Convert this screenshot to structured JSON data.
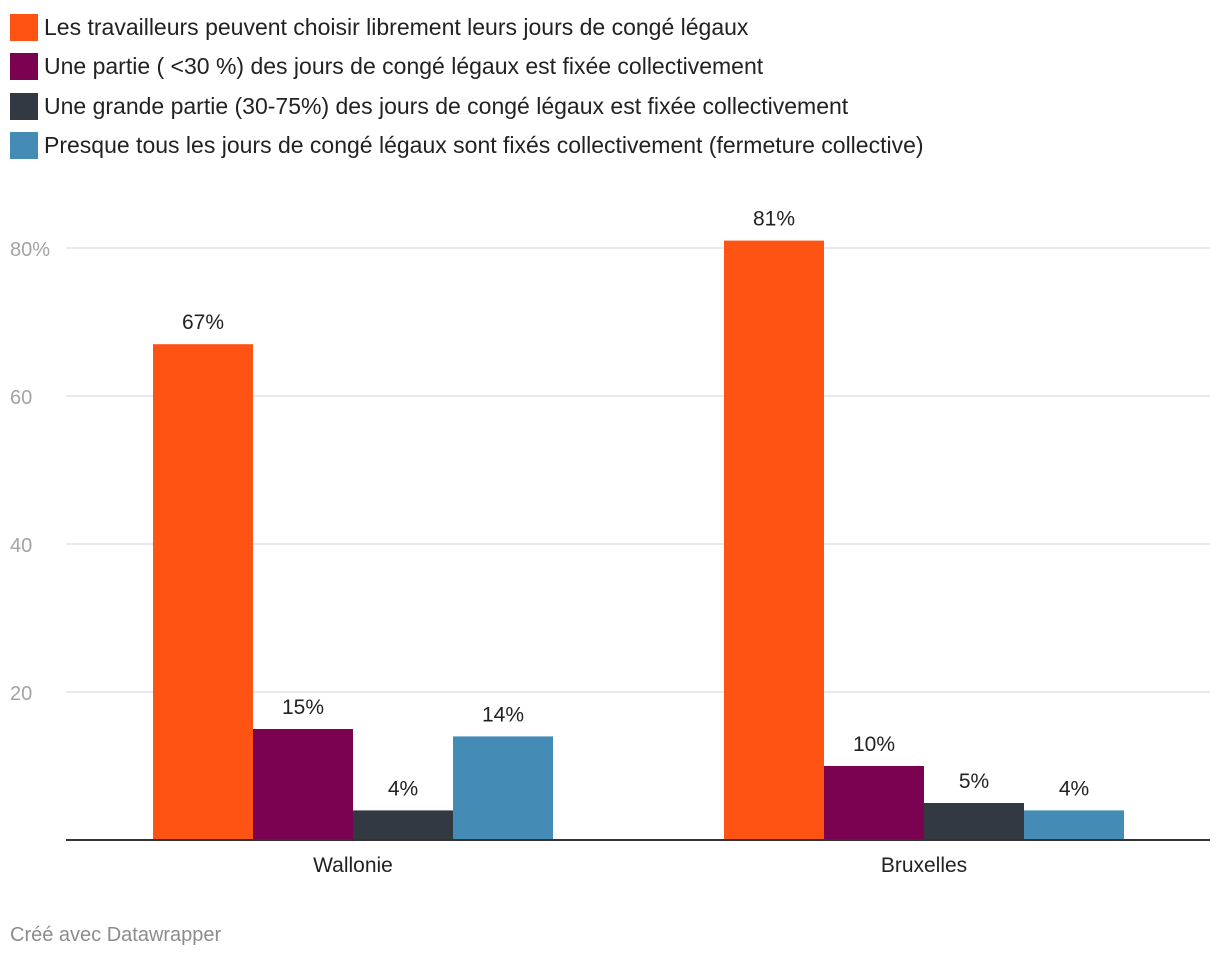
{
  "chart_data": {
    "type": "bar",
    "categories": [
      "Wallonie",
      "Bruxelles"
    ],
    "series": [
      {
        "name": "Les travailleurs peuvent choisir librement leurs jours de congé légaux",
        "color": "#ff5313",
        "values": [
          67,
          81
        ],
        "labels": [
          "67%",
          "81%"
        ]
      },
      {
        "name": "Une partie ( <30 %) des jours de congé légaux est fixée collectivement",
        "color": "#7b0250",
        "values": [
          15,
          10
        ],
        "labels": [
          "15%",
          "10%"
        ]
      },
      {
        "name": "Une grande partie (30-75%) des jours de congé légaux est fixée collectivement",
        "color": "#333943",
        "values": [
          4,
          5
        ],
        "labels": [
          "4%",
          "5%"
        ]
      },
      {
        "name": "Presque tous les jours de congé légaux sont fixés collectivement (fermeture collective)",
        "color": "#448cb5",
        "values": [
          14,
          4
        ],
        "labels": [
          "14%",
          "4%"
        ]
      }
    ],
    "yticks": [
      20,
      40,
      60,
      80
    ],
    "ytick_labels": [
      "20",
      "40",
      "60",
      "80%"
    ],
    "ylim": [
      0,
      80
    ],
    "grid": true,
    "legend_position": "top-left",
    "title": "",
    "xlabel": "",
    "ylabel": ""
  },
  "footer": {
    "credit": "Créé avec Datawrapper"
  }
}
